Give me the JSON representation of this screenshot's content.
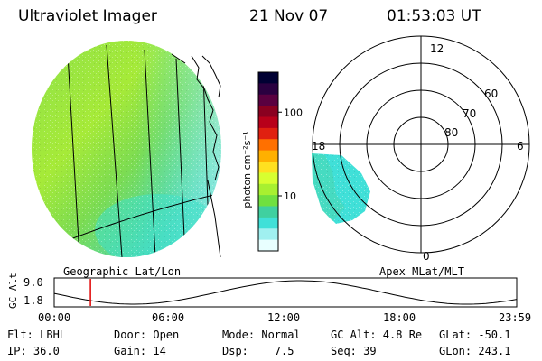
{
  "header": {
    "instrument": "Ultraviolet Imager",
    "date": "21 Nov 07",
    "time": "01:53:03 UT"
  },
  "left_panel": {
    "caption": "Geographic Lat/Lon"
  },
  "colorbar": {
    "unit_label": "photon cm⁻²s⁻¹",
    "ticks": [
      {
        "label": "100",
        "value": 100
      },
      {
        "label": "10",
        "value": 10
      }
    ],
    "colors_top_to_bottom": [
      "#000033",
      "#2a0040",
      "#5a0040",
      "#8a0020",
      "#b8001a",
      "#e02010",
      "#ff7000",
      "#ffb000",
      "#ffe020",
      "#d8ff30",
      "#a8f030",
      "#70e040",
      "#40d0a0",
      "#40e0d8",
      "#a0f0f0",
      "#e8ffff"
    ]
  },
  "right_panel": {
    "caption": "Apex MLat/MLT",
    "mlt_labels": {
      "top": "12",
      "left": "18",
      "right": "6",
      "bottom": "0"
    },
    "lat_labels": [
      "60",
      "70",
      "80"
    ]
  },
  "altitude_plot": {
    "ylabel": "GC Alt",
    "y_ticks": [
      "9.0",
      "1.8"
    ],
    "x_ticks": [
      "00:00",
      "06:00",
      "12:00",
      "18:00",
      "23:59"
    ],
    "current_time_marker_hours": 1.88,
    "marker_color": "#e00000"
  },
  "info": {
    "row1": {
      "flt": "Flt: LBHL",
      "door": "Door: Open",
      "mode": "Mode: Normal",
      "gcalt": "GC Alt: 4.8 Re",
      "glat": "GLat: -50.1"
    },
    "row2": {
      "ip": "IP: 36.0",
      "gain": "Gain: 14",
      "dsp": "Dsp:    7.5",
      "seq": "Seq: 39",
      "glon": "GLon: 243.1"
    }
  }
}
